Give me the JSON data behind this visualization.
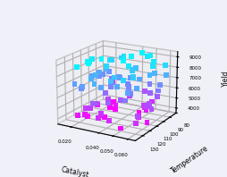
{
  "title": "",
  "xlabel": "Catalyst",
  "ylabel": "Temperature",
  "zlabel": "Yield",
  "xlim": [
    0.01,
    0.065
  ],
  "ylim": [
    80,
    140
  ],
  "zlim": [
    3500,
    9500
  ],
  "xticks": [
    0.02,
    0.04,
    0.05,
    0.06
  ],
  "yticks": [
    80,
    90,
    100,
    110,
    120,
    130
  ],
  "zticks": [
    4000,
    5000,
    6000,
    7000,
    8000,
    9000
  ],
  "elev": 18,
  "azim": -60,
  "background_color": "#f0f0f8",
  "seed": 42,
  "n_points": 100,
  "cmap": "cool_r",
  "marker_size": 18,
  "vmin": 3500,
  "vmax": 9200
}
